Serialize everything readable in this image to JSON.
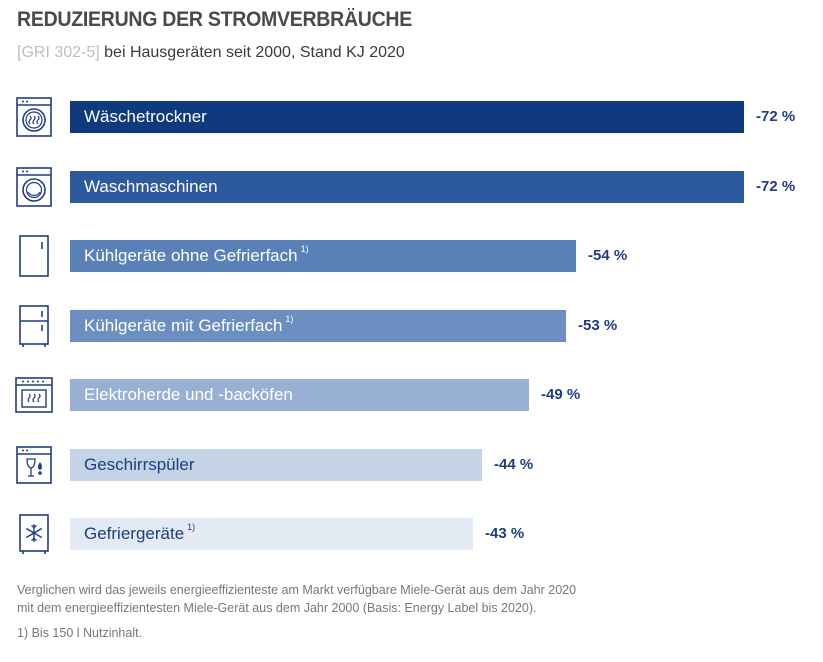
{
  "header": {
    "title": "REDUZIERUNG DER STROMVERBRÄUCHE",
    "subtitle_ref": "[GRI 302-5]",
    "subtitle_text": " bei Hausgeräten seit 2000, Stand KJ 2020"
  },
  "chart_data": {
    "type": "bar",
    "orientation": "horizontal",
    "title": "REDUZIERUNG DER STROMVERBRÄUCHE",
    "subtitle": "[GRI 302-5] bei Hausgeräten seit 2000, Stand KJ 2020",
    "unit": "%",
    "categories": [
      "Wäschetrockner",
      "Waschmaschinen",
      "Kühlgeräte ohne Gefrierfach",
      "Kühlgeräte mit Gefrierfach",
      "Elektroherde und -backöfen",
      "Geschirrspüler",
      "Gefriergeräte"
    ],
    "values": [
      -72,
      -72,
      -54,
      -53,
      -49,
      -44,
      -43
    ],
    "value_labels": [
      "-72 %",
      "-72 %",
      "-54 %",
      "-53 %",
      "-49 %",
      "-44 %",
      "-43 %"
    ],
    "footnote_marks": [
      "",
      "",
      "1)",
      "1)",
      "",
      "",
      "1)"
    ],
    "icons": [
      "dryer-icon",
      "washing-machine-icon",
      "fridge-icon",
      "fridge-freezer-icon",
      "oven-icon",
      "dishwasher-icon",
      "freezer-icon"
    ],
    "colors": [
      "#0f3a7d",
      "#2d5a9c",
      "#5a81b7",
      "#6b8fc0",
      "#97b0d3",
      "#c5d3e6",
      "#e4eaf3"
    ],
    "label_colors": [
      "#ffffff",
      "#ffffff",
      "#ffffff",
      "#ffffff",
      "#ffffff",
      "#1f3d80",
      "#1f3d80"
    ],
    "value_color": "#1f3d80",
    "xlim": [
      0,
      72
    ]
  },
  "footnote": {
    "line1": "Verglichen wird das jeweils energieeffizienteste am Markt verfügbare Miele-Gerät aus dem Jahr 2020",
    "line2": "mit dem energieeffizientesten Miele-Gerät aus dem Jahr 2000 (Basis: Energy Label bis 2020).",
    "ref": "1)   Bis 150 l Nutzinhalt."
  }
}
